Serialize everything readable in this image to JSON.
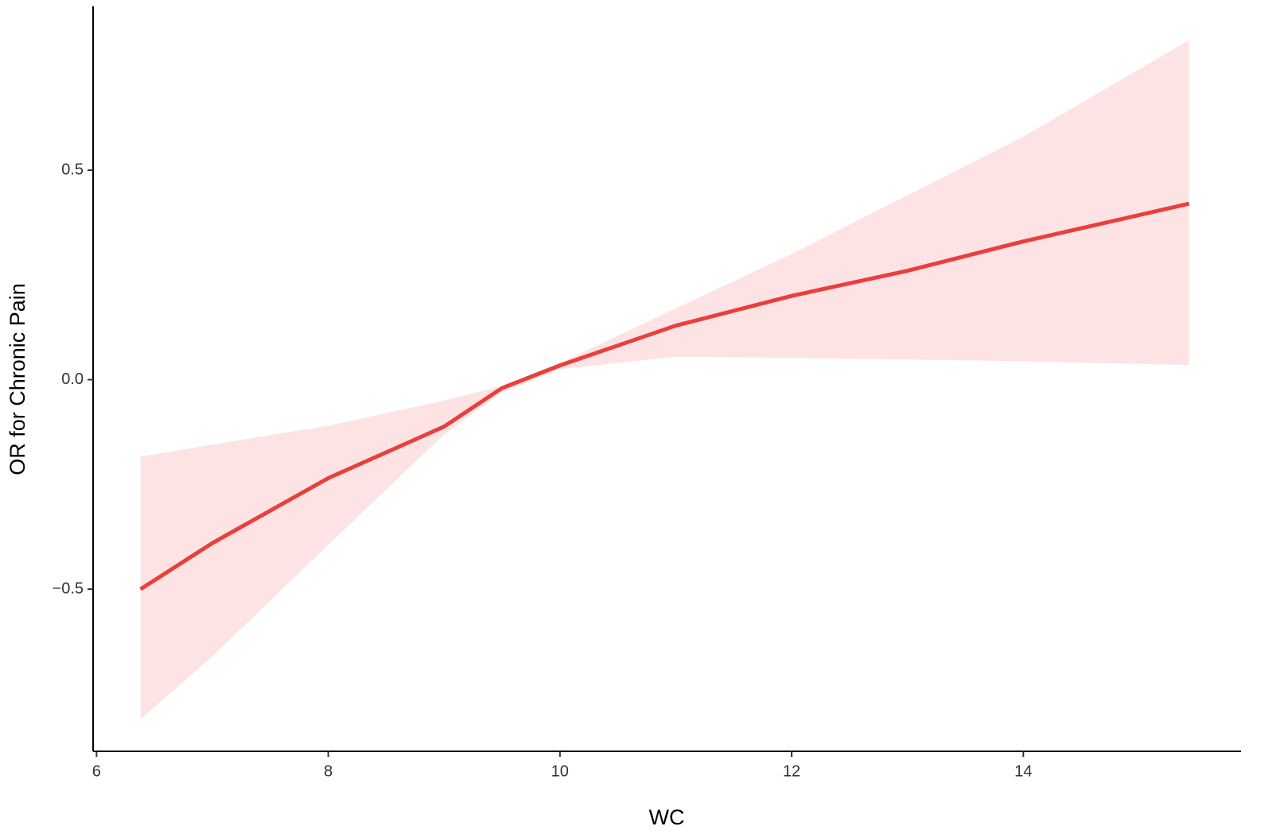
{
  "chart_data": {
    "type": "line-band",
    "x_label": "WC",
    "y_label": "OR for Chronic Pain",
    "x": [
      6.38,
      7,
      8,
      9,
      9.5,
      10,
      11,
      12,
      13,
      14,
      15.43
    ],
    "values": [
      -0.5,
      -0.39,
      -0.235,
      -0.112,
      -0.02,
      0.034,
      0.129,
      0.2,
      0.26,
      0.33,
      0.42
    ],
    "lower": [
      -0.81,
      -0.66,
      -0.394,
      -0.13,
      -0.03,
      0.025,
      0.055,
      0.052,
      0.048,
      0.044,
      0.035
    ],
    "upper": [
      -0.184,
      -0.155,
      -0.11,
      -0.05,
      -0.015,
      0.04,
      0.17,
      0.3,
      0.44,
      0.58,
      0.81
    ],
    "color": "#e8403d",
    "band_color": "#fde3e3",
    "xlim": [
      5.97,
      15.88
    ],
    "xticks": [
      6,
      8,
      10,
      12,
      14
    ],
    "ylim": [
      -0.887,
      0.891
    ],
    "yticks": [
      {
        "value": -0.5,
        "label": "−0.5"
      },
      {
        "value": 0,
        "label": "0.0"
      },
      0.5
    ],
    "grid": false
  }
}
